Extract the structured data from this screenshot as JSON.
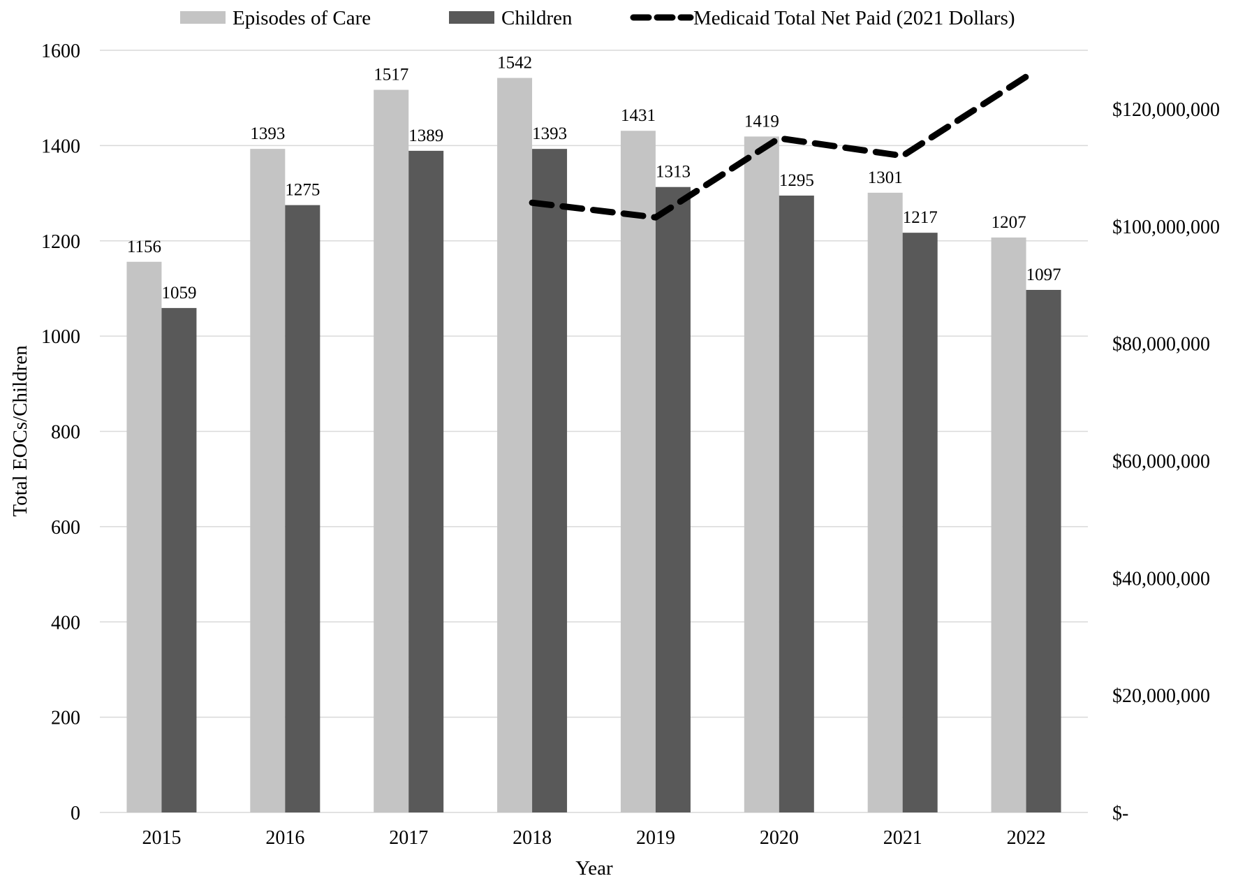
{
  "chart_data": {
    "type": "bar",
    "title": "",
    "xlabel": "Year",
    "ylabel": "Total EOCs/Children",
    "categories": [
      "2015",
      "2016",
      "2017",
      "2018",
      "2019",
      "2020",
      "2021",
      "2022"
    ],
    "ylim": [
      0,
      1600
    ],
    "yticks": [
      "0",
      "200",
      "400",
      "600",
      "800",
      "1000",
      "1200",
      "1400",
      "1600"
    ],
    "y2lim": [
      0,
      130000000
    ],
    "y2ticks": [
      "$-",
      "$20,000,000",
      "$40,000,000",
      "$60,000,000",
      "$80,000,000",
      "$100,000,000",
      "$120,000,000"
    ],
    "grid": "horizontal",
    "legend_position": "top",
    "series": [
      {
        "name": "Episodes of Care",
        "type": "bar",
        "axis": "left",
        "color": "#c4c4c4",
        "values": [
          1156,
          1393,
          1517,
          1542,
          1431,
          1419,
          1301,
          1207
        ]
      },
      {
        "name": "Children",
        "type": "bar",
        "axis": "left",
        "color": "#595959",
        "values": [
          1059,
          1275,
          1389,
          1393,
          1313,
          1295,
          1217,
          1097
        ]
      },
      {
        "name": "Medicaid Total Net Paid (2021 Dollars)",
        "type": "line",
        "style": "dashed",
        "axis": "right",
        "color": "#000000",
        "values": [
          null,
          null,
          null,
          104000000,
          101500000,
          115000000,
          112000000,
          125500000
        ]
      }
    ]
  }
}
